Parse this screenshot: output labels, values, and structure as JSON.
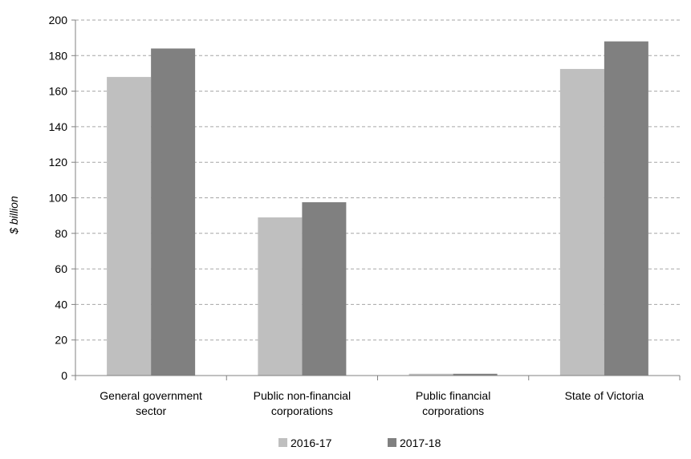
{
  "chart_data": {
    "type": "bar",
    "title": "",
    "xlabel": "",
    "ylabel": "$ billion",
    "ylim": [
      0,
      200
    ],
    "yticks": [
      0,
      20,
      40,
      60,
      80,
      100,
      120,
      140,
      160,
      180,
      200
    ],
    "grid": true,
    "legend_position": "bottom",
    "categories": [
      [
        "General government",
        "sector"
      ],
      [
        "Public non-financial",
        "corporations"
      ],
      [
        "Public financial",
        "corporations"
      ],
      [
        "State of Victoria"
      ]
    ],
    "series": [
      {
        "name": "2016-17",
        "color": "#bfbfbf",
        "values": [
          168,
          89,
          1,
          172.5
        ]
      },
      {
        "name": "2017-18",
        "color": "#808080",
        "values": [
          184,
          97.5,
          1,
          188
        ]
      }
    ]
  }
}
